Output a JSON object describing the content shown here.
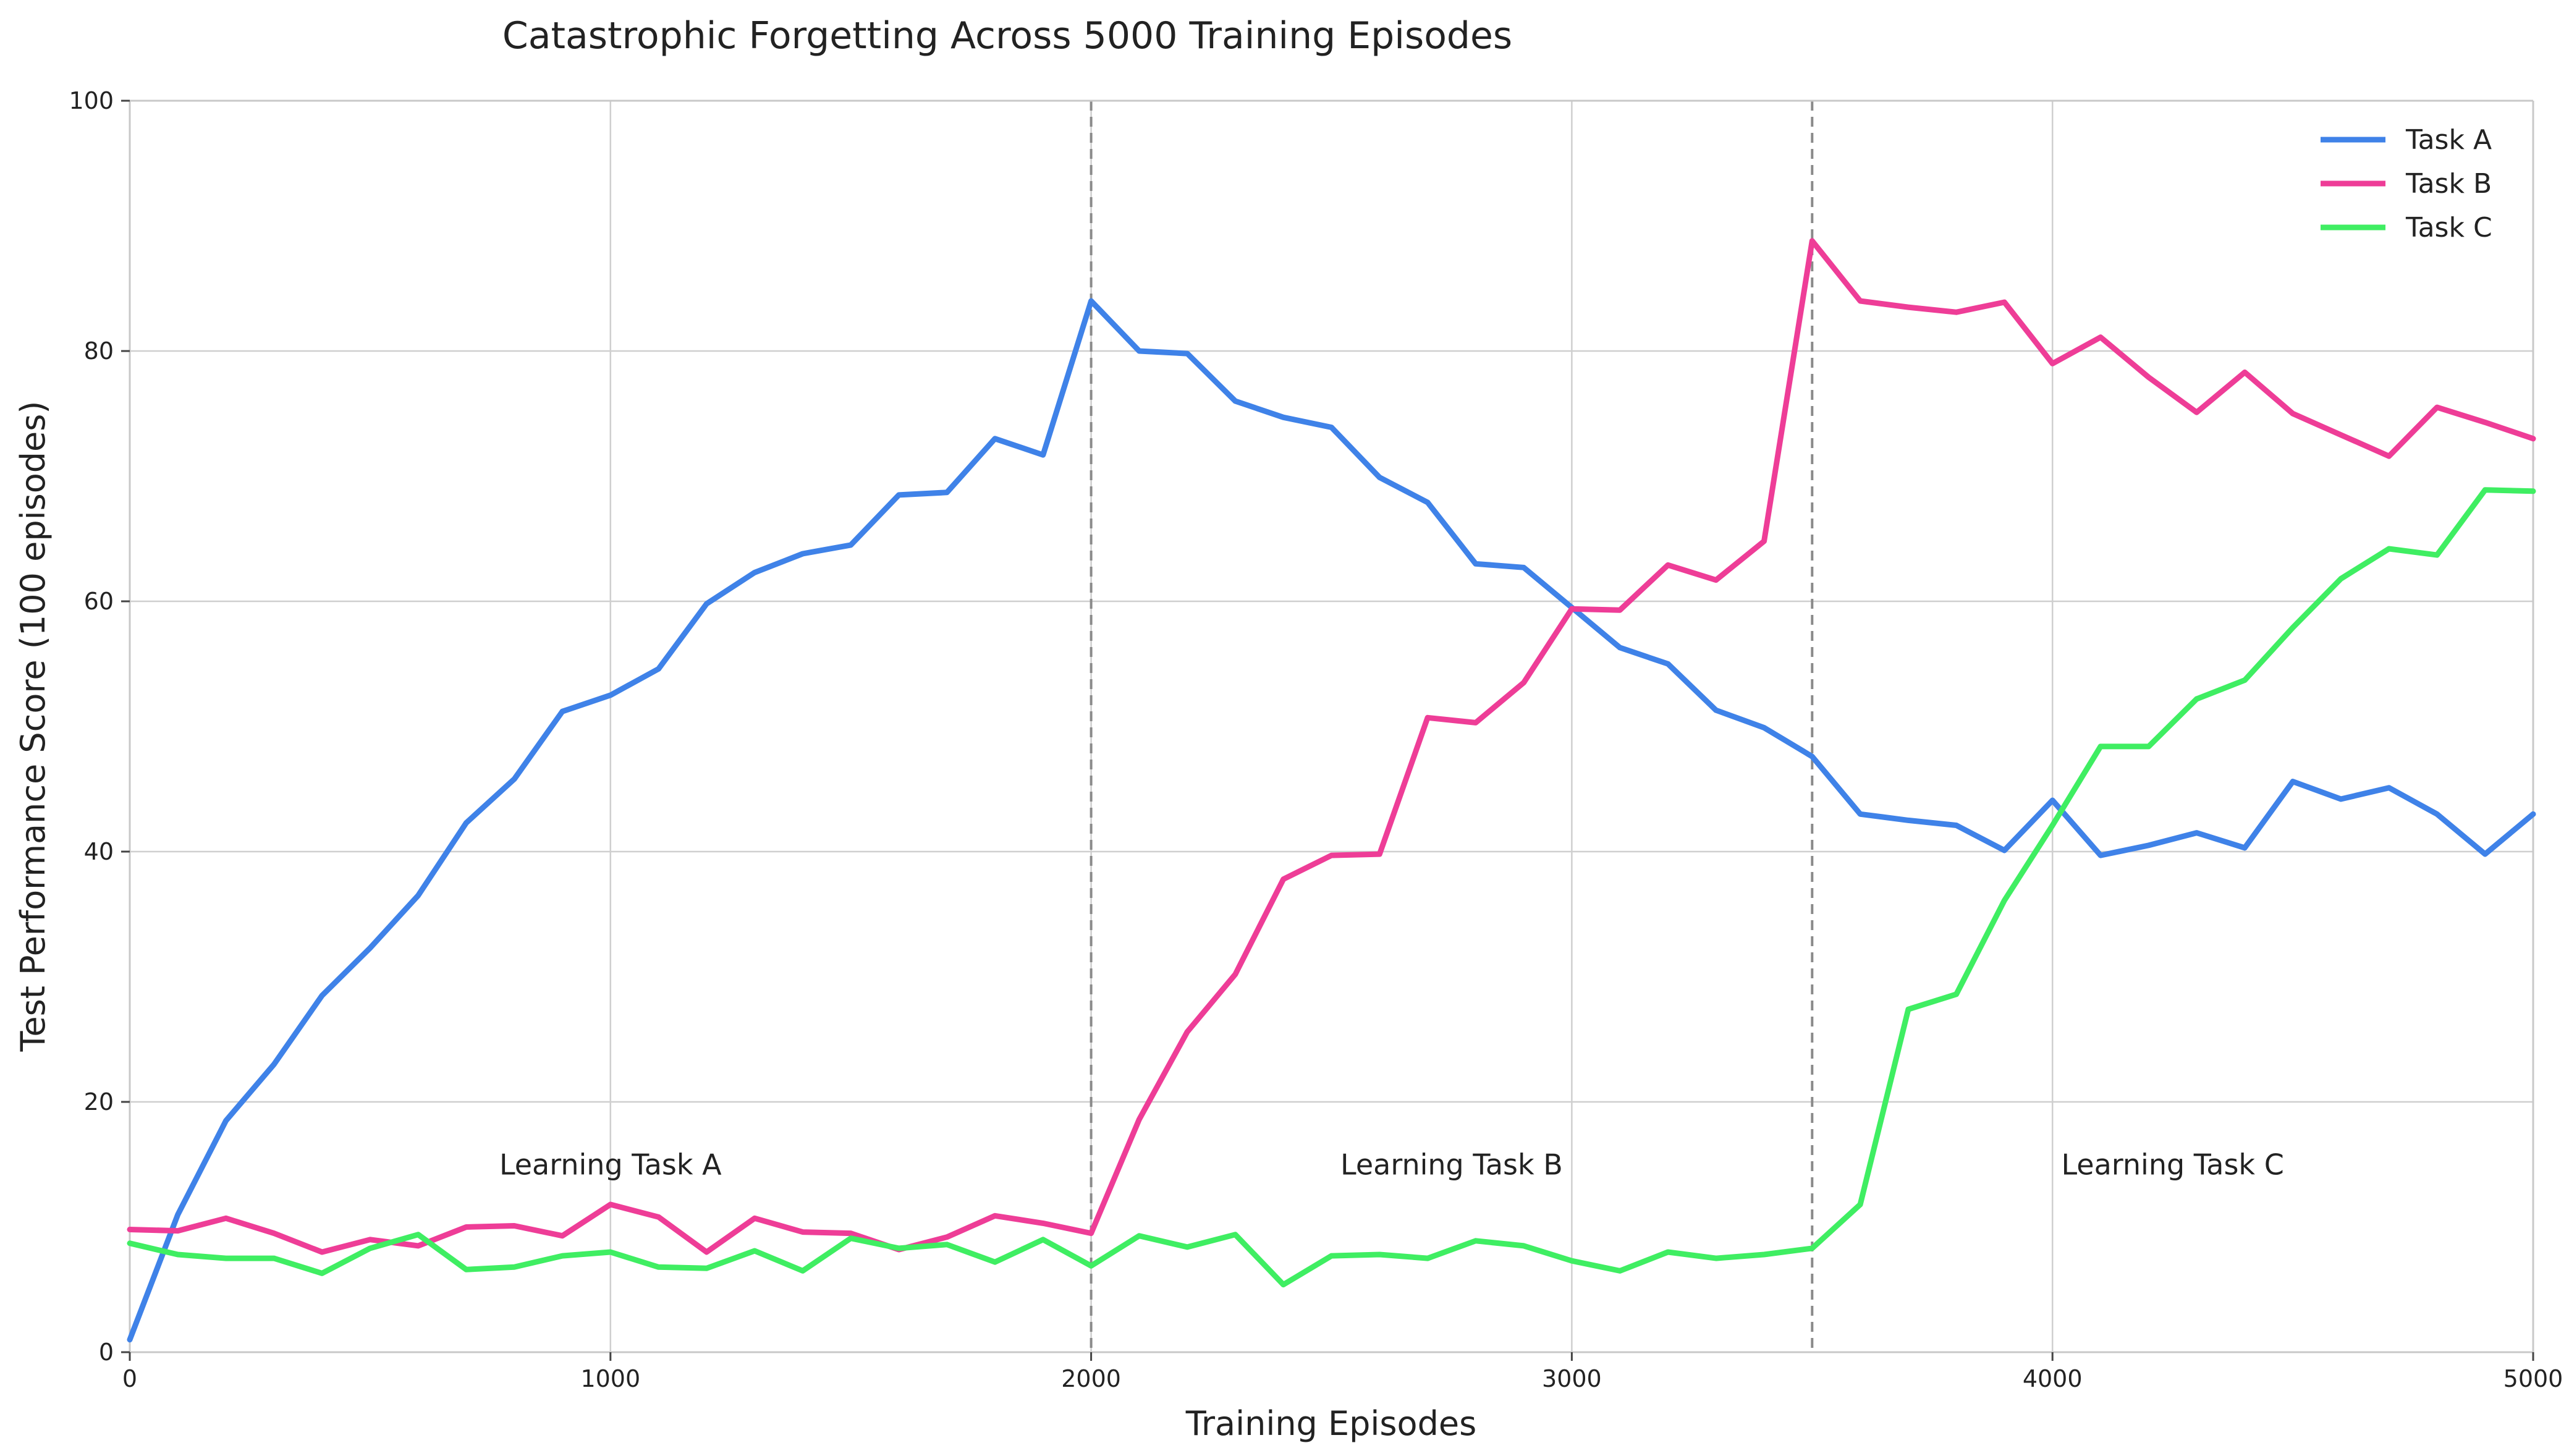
{
  "chart_data": {
    "type": "line",
    "title": "Catastrophic Forgetting Across 5000 Training Episodes",
    "xlabel": "Training Episodes",
    "ylabel": "Test Performance Score (100 episodes)",
    "xlim": [
      0,
      5000
    ],
    "ylim": [
      0,
      100
    ],
    "xticks": [
      0,
      1000,
      2000,
      3000,
      4000,
      5000
    ],
    "yticks": [
      0,
      20,
      40,
      60,
      80,
      100
    ],
    "grid": true,
    "legend_position": "top-right",
    "x": [
      0,
      100,
      200,
      300,
      400,
      500,
      600,
      700,
      800,
      900,
      1000,
      1100,
      1200,
      1300,
      1400,
      1500,
      1600,
      1700,
      1800,
      1900,
      2000,
      2100,
      2200,
      2300,
      2400,
      2500,
      2600,
      2700,
      2800,
      2900,
      3000,
      3100,
      3200,
      3300,
      3400,
      3500,
      3600,
      3700,
      3800,
      3900,
      4000,
      4100,
      4200,
      4300,
      4400,
      4500,
      4600,
      4700,
      4800,
      4900,
      5000
    ],
    "series": [
      {
        "name": "Task A",
        "color": "#3f82e8",
        "values": [
          1.0,
          11.0,
          18.5,
          23.0,
          28.5,
          32.3,
          36.5,
          42.3,
          45.8,
          51.2,
          52.5,
          54.6,
          59.8,
          62.3,
          63.8,
          64.5,
          68.5,
          68.7,
          73.0,
          71.7,
          84.0,
          80.0,
          79.8,
          76.0,
          74.7,
          73.9,
          69.9,
          67.9,
          63.0,
          62.7,
          59.5,
          56.3,
          55.0,
          51.3,
          49.9,
          47.6,
          43.0,
          42.5,
          42.1,
          40.1,
          44.1,
          39.7,
          40.5,
          41.5,
          40.3,
          45.6,
          44.2,
          45.1,
          43.0,
          39.8,
          43.0
        ]
      },
      {
        "name": "Task B",
        "color": "#ee3d97",
        "values": [
          9.8,
          9.7,
          10.7,
          9.5,
          8.0,
          9.0,
          8.5,
          10.0,
          10.1,
          9.3,
          11.8,
          10.8,
          8.0,
          10.7,
          9.6,
          9.5,
          8.2,
          9.2,
          10.9,
          10.3,
          9.5,
          18.6,
          25.6,
          30.2,
          37.8,
          39.7,
          39.8,
          50.7,
          50.3,
          53.5,
          59.4,
          59.3,
          62.9,
          61.7,
          64.8,
          88.8,
          84.0,
          83.5,
          83.1,
          83.9,
          79.0,
          81.1,
          77.9,
          75.1,
          78.3,
          75.0,
          73.3,
          71.6,
          75.5,
          74.3,
          73.0
        ]
      },
      {
        "name": "Task C",
        "color": "#3fee62",
        "values": [
          8.7,
          7.8,
          7.5,
          7.5,
          6.3,
          8.3,
          9.4,
          6.6,
          6.8,
          7.7,
          8.0,
          6.8,
          6.7,
          8.1,
          6.5,
          9.1,
          8.3,
          8.6,
          7.2,
          9.0,
          6.9,
          9.3,
          8.4,
          9.4,
          5.4,
          7.7,
          7.8,
          7.5,
          8.9,
          8.5,
          7.3,
          6.5,
          8.0,
          7.5,
          7.8,
          8.3,
          11.8,
          27.4,
          28.6,
          36.1,
          42.1,
          48.4,
          48.4,
          52.2,
          53.7,
          57.9,
          61.8,
          64.2,
          63.7,
          68.9,
          68.8
        ]
      }
    ],
    "phase_boundaries": [
      2000,
      3500
    ],
    "annotations": [
      {
        "text": "Learning Task A",
        "x": 1000,
        "y": 15
      },
      {
        "text": "Learning Task B",
        "x": 2750,
        "y": 15
      },
      {
        "text": "Learning Task C",
        "x": 4250,
        "y": 15
      }
    ]
  }
}
